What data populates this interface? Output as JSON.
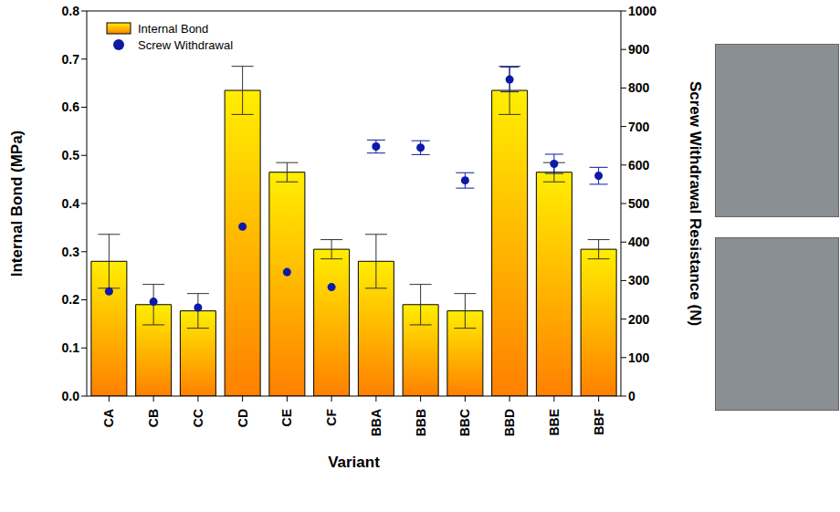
{
  "chart_data": {
    "type": "bar",
    "categories": [
      "CA",
      "CB",
      "CC",
      "CD",
      "CE",
      "CF",
      "BBA",
      "BBB",
      "BBC",
      "BBD",
      "BBE",
      "BBF"
    ],
    "x_label": "Variant",
    "y_label": "Internal Bond (MPa)",
    "y2_label": "Screw Withdrawal Resistance (N)",
    "ylim": [
      0,
      0.8
    ],
    "yticks": [
      {
        "value": 0,
        "label": "0.0"
      },
      0.1,
      0.2,
      0.3,
      0.4,
      0.5,
      0.6,
      0.7,
      0.8
    ],
    "y2lim": [
      0,
      1000
    ],
    "y2ticks": [
      0,
      100,
      200,
      300,
      400,
      500,
      600,
      700,
      800,
      900,
      1000
    ],
    "legend": "upper left",
    "series": [
      {
        "name": "Internal Bond",
        "type": "bar",
        "color": "#ffee00",
        "values": [
          0.28,
          0.19,
          0.177,
          0.635,
          0.465,
          0.305,
          0.28,
          0.19,
          0.177,
          0.635,
          0.465,
          0.305
        ],
        "errors": [
          0.056,
          0.042,
          0.036,
          0.05,
          0.02,
          0.02,
          0.056,
          0.042,
          0.036,
          0.05,
          0.02,
          0.02
        ]
      },
      {
        "name": "Screw Withdrawal",
        "type": "scatter",
        "axis": "y2",
        "color": "#0c1aa6",
        "marker": "circle",
        "values": [
          272,
          245,
          230,
          440,
          322,
          283,
          648,
          645,
          560,
          822,
          603,
          572
        ],
        "errors": [
          null,
          null,
          null,
          null,
          null,
          null,
          17,
          18,
          20,
          32,
          25,
          22
        ]
      }
    ]
  }
}
